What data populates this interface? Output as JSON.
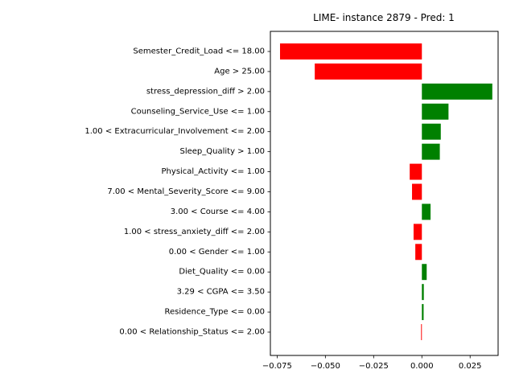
{
  "chart_data": {
    "type": "bar",
    "orientation": "horizontal",
    "title": "LIME- instance 2879 - Pred: 1",
    "xlabel": "",
    "ylabel": "",
    "xlim": [
      -0.0785,
      0.0395
    ],
    "x_ticks": [
      -0.075,
      -0.05,
      -0.025,
      0.0,
      0.025
    ],
    "x_tick_labels": [
      "−0.075",
      "−0.050",
      "−0.025",
      "0.000",
      "0.025"
    ],
    "grid": false,
    "legend": "none",
    "colors": {
      "positive": "#008000",
      "negative": "#ff0000"
    },
    "categories": [
      "Semester_Credit_Load <= 18.00",
      "Age > 25.00",
      "stress_depression_diff > 2.00",
      "Counseling_Service_Use <= 1.00",
      "1.00 < Extracurricular_Involvement <= 2.00",
      "Sleep_Quality > 1.00",
      "Physical_Activity <= 1.00",
      "7.00 < Mental_Severity_Score <= 9.00",
      "3.00 < Course <= 4.00",
      "1.00 < stress_anxiety_diff <= 2.00",
      "0.00 < Gender <= 1.00",
      "Diet_Quality <= 0.00",
      "3.29 < CGPA <= 3.50",
      "Residence_Type <= 0.00",
      "0.00 < Relationship_Status <= 2.00"
    ],
    "values": [
      -0.0735,
      -0.0555,
      0.0365,
      0.0138,
      0.0098,
      0.0093,
      -0.0063,
      -0.0051,
      0.0045,
      -0.0043,
      -0.0034,
      0.0025,
      0.001,
      0.0009,
      -0.0004
    ]
  }
}
